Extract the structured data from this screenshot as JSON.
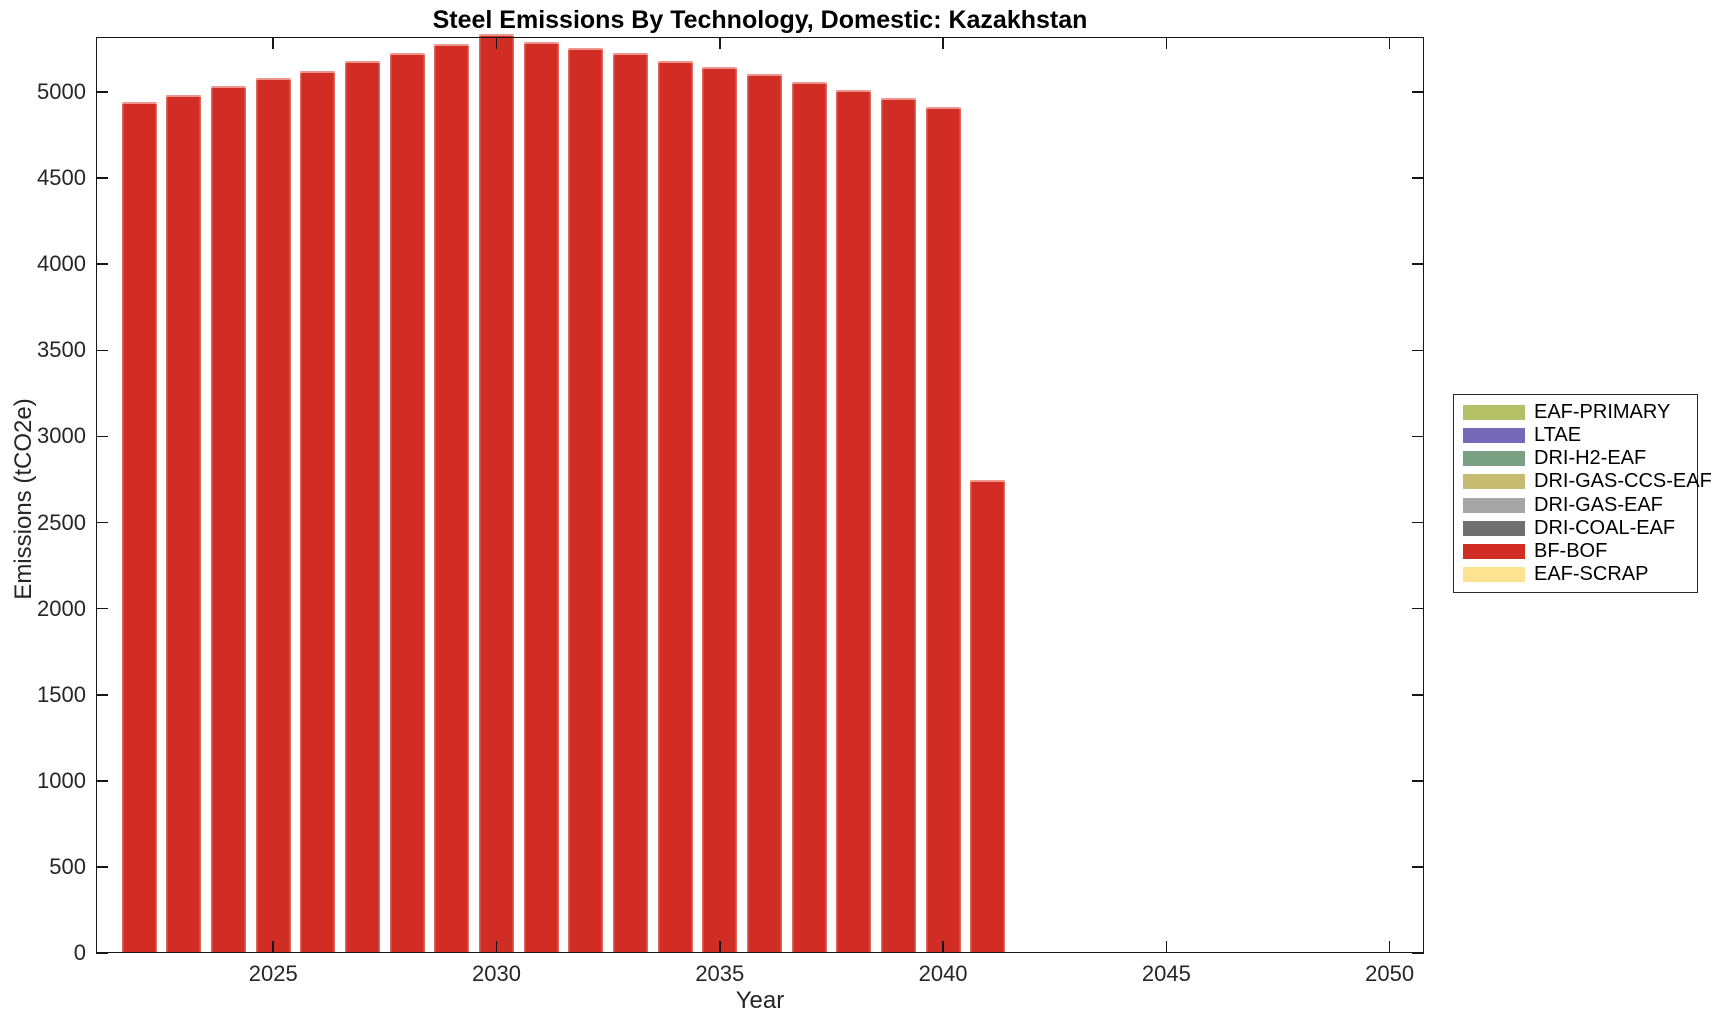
{
  "chart_data": {
    "type": "bar",
    "subtype": "stacked",
    "title": "Steel Emissions By Technology, Domestic: Kazakhstan",
    "xlabel": "Year",
    "ylabel": "Emissions (tCO2e)",
    "x": [
      2022,
      2023,
      2024,
      2025,
      2026,
      2027,
      2028,
      2029,
      2030,
      2031,
      2032,
      2033,
      2034,
      2035,
      2036,
      2037,
      2038,
      2039,
      2040,
      2041
    ],
    "series": [
      {
        "name": "BF-BOF",
        "color": "#d22d25",
        "values": [
          4940,
          4985,
          5035,
          5080,
          5125,
          5180,
          5230,
          5280,
          5335,
          5290,
          5255,
          5225,
          5180,
          5145,
          5105,
          5060,
          5010,
          4965,
          4915,
          2750
        ]
      }
    ],
    "legend": {
      "position": "right-outside",
      "entries": [
        {
          "label": "EAF-PRIMARY",
          "color": "#b3c063"
        },
        {
          "label": "LTAE",
          "color": "#7668b8"
        },
        {
          "label": "DRI-H2-EAF",
          "color": "#79a083"
        },
        {
          "label": "DRI-GAS-CCS-EAF",
          "color": "#c7bb72"
        },
        {
          "label": "DRI-GAS-EAF",
          "color": "#a6a6a6"
        },
        {
          "label": "DRI-COAL-EAF",
          "color": "#6f6f6f"
        },
        {
          "label": "BF-BOF",
          "color": "#d22d25"
        },
        {
          "label": "EAF-SCRAP",
          "color": "#fde291"
        }
      ]
    },
    "xticks": [
      2025,
      2030,
      2035,
      2040,
      2045,
      2050
    ],
    "yticks": [
      0,
      500,
      1000,
      1500,
      2000,
      2500,
      3000,
      3500,
      4000,
      4500,
      5000
    ],
    "xlim": [
      2021.03,
      2050.77
    ],
    "ylim": [
      0,
      5320
    ],
    "grid": false,
    "axis_color": "#262626",
    "background": "#ffffff"
  }
}
